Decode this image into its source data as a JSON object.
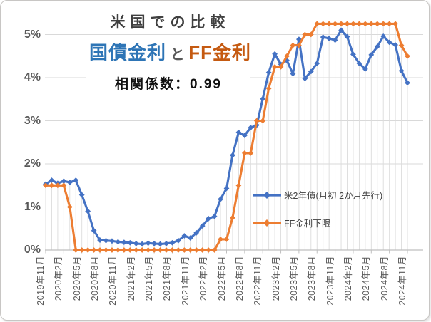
{
  "header": {
    "title": "米国での比較",
    "subtitle_left": "国債金利",
    "subtitle_mid": " と ",
    "subtitle_right": "FF金利",
    "correlation": "相関係数：0.99"
  },
  "colors": {
    "series_blue": "#4472C4",
    "series_orange": "#ED7D31",
    "subtitle_blue": "#2E75B6",
    "subtitle_orange": "#C55A11",
    "gridline": "#D9D9D9",
    "drop_line": "#DCDCDC",
    "axis_line": "#BFBFBF",
    "axis_text": "#595959"
  },
  "chart_data": {
    "type": "line",
    "title": "米国での比較",
    "subtitle": "国債金利 と FF金利",
    "annotation": "相関係数：0.99",
    "ylim": [
      0,
      5.42
    ],
    "yticks": [
      "0%",
      "1%",
      "2%",
      "3%",
      "4%",
      "5%"
    ],
    "grid": "horizontal-major + vertical-drop-lines",
    "legend_position": "inside-middle-right",
    "n_points": 61,
    "x_start": "2019年11月",
    "x_end": "2024年11月",
    "tick_interval_months": 3,
    "x_tick_labels": [
      "2019年11月",
      "2020年2月",
      "2020年5月",
      "2020年8月",
      "2020年11月",
      "2021年2月",
      "2021年5月",
      "2021年8月",
      "2021年11月",
      "2022年2月",
      "2022年5月",
      "2022年8月",
      "2022年11月",
      "2023年2月",
      "2023年5月",
      "2023年8月",
      "2023年11月",
      "2024年2月",
      "2024年5月",
      "2024年8月",
      "2024年11月"
    ],
    "series": [
      {
        "name": "米2年債(月初 2か月先行)",
        "color": "#4472C4",
        "marker": "diamond",
        "values": [
          1.53,
          1.62,
          1.55,
          1.6,
          1.57,
          1.62,
          1.28,
          0.9,
          0.45,
          0.23,
          0.22,
          0.21,
          0.19,
          0.18,
          0.17,
          0.15,
          0.14,
          0.16,
          0.15,
          0.14,
          0.15,
          0.17,
          0.22,
          0.33,
          0.28,
          0.4,
          0.56,
          0.73,
          0.78,
          1.18,
          1.43,
          2.2,
          2.73,
          2.66,
          2.84,
          2.9,
          3.51,
          4.12,
          4.55,
          4.31,
          4.4,
          4.09,
          4.89,
          3.98,
          4.14,
          4.33,
          4.94,
          4.91,
          4.87,
          5.1,
          4.95,
          4.54,
          4.33,
          4.2,
          4.53,
          4.72,
          4.96,
          4.82,
          4.76,
          4.16,
          3.88
        ]
      },
      {
        "name": "FF金利下限",
        "color": "#ED7D31",
        "marker": "diamond",
        "values": [
          1.5,
          1.5,
          1.5,
          1.5,
          1.0,
          0,
          0,
          0,
          0,
          0,
          0,
          0,
          0,
          0,
          0,
          0,
          0,
          0,
          0,
          0,
          0,
          0,
          0,
          0,
          0,
          0,
          0,
          0,
          0,
          0.25,
          0.25,
          0.75,
          1.5,
          2.25,
          2.25,
          3.0,
          3.0,
          3.75,
          4.25,
          4.25,
          4.5,
          4.75,
          4.75,
          5.0,
          5.0,
          5.25,
          5.25,
          5.25,
          5.25,
          5.25,
          5.25,
          5.25,
          5.25,
          5.25,
          5.25,
          5.25,
          5.25,
          5.25,
          5.25,
          4.75,
          4.5
        ]
      }
    ]
  }
}
